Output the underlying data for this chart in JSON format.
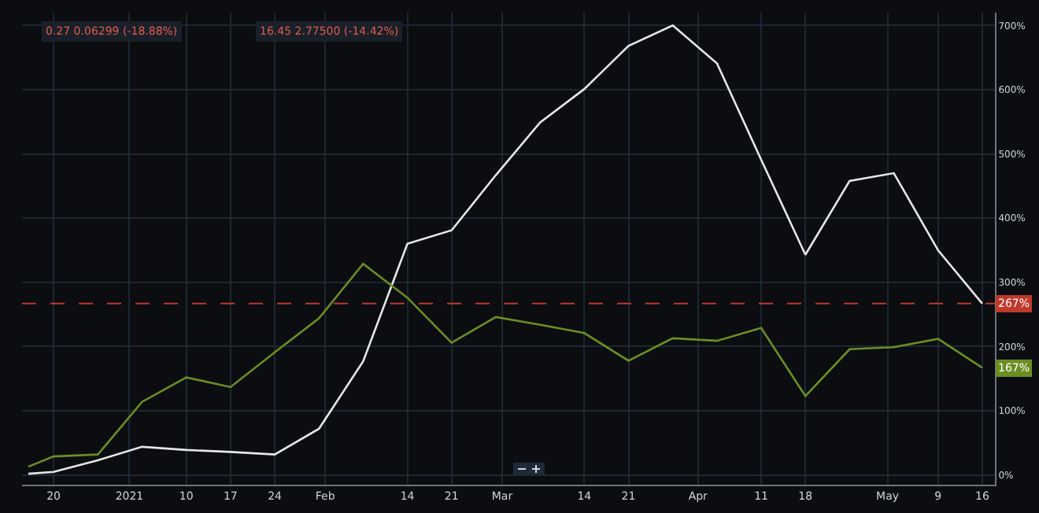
{
  "chart_data": {
    "type": "line",
    "x": [
      "2020-12-16",
      "2020-12-20",
      "2020-12-27",
      "2021-01-03",
      "2021-01-10",
      "2021-01-17",
      "2021-01-24",
      "2021-01-31",
      "2021-02-07",
      "2021-02-14",
      "2021-02-21",
      "2021-02-28",
      "2021-03-07",
      "2021-03-14",
      "2021-03-21",
      "2021-03-28",
      "2021-04-04",
      "2021-04-11",
      "2021-04-18",
      "2021-04-25",
      "2021-05-02",
      "2021-05-09",
      "2021-05-16"
    ],
    "series": [
      {
        "color": "#e6e6e6",
        "values": [
          2,
          5,
          23,
          44,
          39,
          36,
          32,
          72,
          177,
          360,
          381,
          467,
          549,
          601,
          668,
          700,
          641,
          491,
          343,
          458,
          470,
          350,
          267
        ]
      },
      {
        "color": "#6b8e23",
        "values": [
          13,
          29,
          32,
          114,
          152,
          137,
          191,
          244,
          329,
          276,
          206,
          246,
          234,
          221,
          178,
          213,
          209,
          229,
          123,
          196,
          199,
          212,
          167
        ]
      }
    ],
    "xlim": [
      "2020-12-15",
      "2021-05-18"
    ],
    "xticks": [
      {
        "value": "2020-12-20",
        "label": "20"
      },
      {
        "value": "2021-01-01",
        "label": "2021"
      },
      {
        "value": "2021-01-10",
        "label": "10"
      },
      {
        "value": "2021-01-17",
        "label": "17"
      },
      {
        "value": "2021-01-24",
        "label": "24"
      },
      {
        "value": "2021-02-01",
        "label": "Feb"
      },
      {
        "value": "2021-02-14",
        "label": "14"
      },
      {
        "value": "2021-02-21",
        "label": "21"
      },
      {
        "value": "2021-03-01",
        "label": "Mar"
      },
      {
        "value": "2021-03-14",
        "label": "14"
      },
      {
        "value": "2021-03-21",
        "label": "21"
      },
      {
        "value": "2021-04-01",
        "label": "Apr"
      },
      {
        "value": "2021-04-11",
        "label": "11"
      },
      {
        "value": "2021-04-18",
        "label": "18"
      },
      {
        "value": "2021-05-01",
        "label": "May"
      },
      {
        "value": "2021-05-09",
        "label": "9"
      },
      {
        "value": "2021-05-16",
        "label": "16"
      }
    ],
    "ylim": [
      -15,
      720
    ],
    "yticks": [
      {
        "value": 0,
        "label": "0%"
      },
      {
        "value": 100,
        "label": "100%"
      },
      {
        "value": 200,
        "label": "200%"
      },
      {
        "value": 300,
        "label": "300%"
      },
      {
        "value": 400,
        "label": "400%"
      },
      {
        "value": 500,
        "label": "500%"
      },
      {
        "value": 600,
        "label": "600%"
      },
      {
        "value": 700,
        "label": "700%"
      }
    ],
    "ref_lines": [
      {
        "axis": "y",
        "value": 267,
        "label": "267%",
        "color": "#c0392b",
        "line_style": "dashed"
      }
    ],
    "annotations": [
      "0.27 0.06299 (-18.88%)",
      "16.45 2.77500 (-14.42%)",
      {
        "text": "167%",
        "x": "2021-05-16",
        "y": 167
      }
    ],
    "grid": true,
    "line_style": "solid",
    "marker": "none"
  }
}
